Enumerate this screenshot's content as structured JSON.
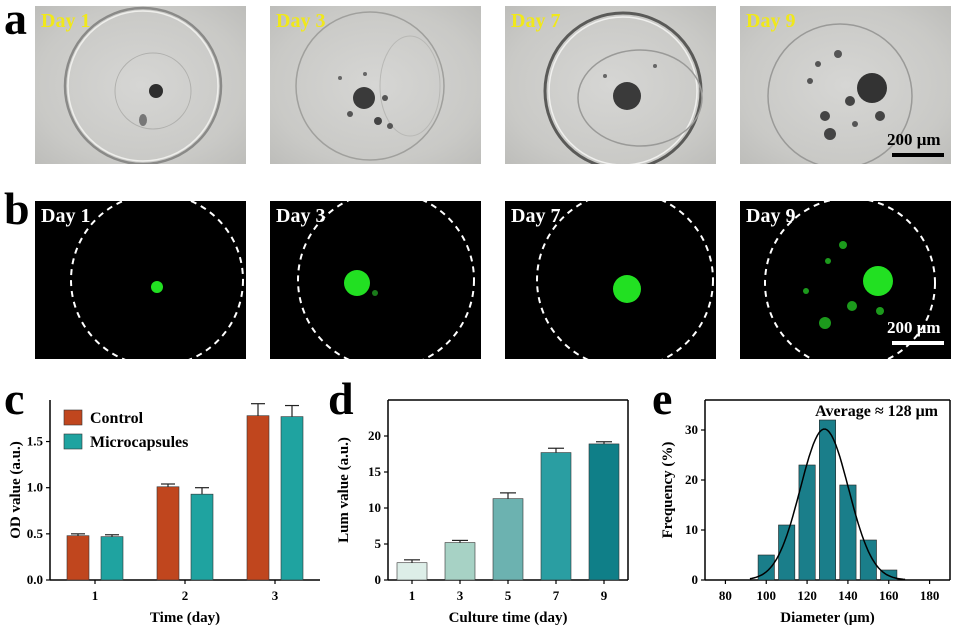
{
  "panels": {
    "a": "a",
    "b": "b",
    "c": "c",
    "d": "d",
    "e": "e"
  },
  "micrographs": {
    "days": [
      "Day 1",
      "Day 3",
      "Day 7",
      "Day 9"
    ],
    "scale_bar_label": "200 μm",
    "colors": {
      "bright_label": "#f0e81a",
      "fluor_label": "#ffffff",
      "fluor_cells": "#22e022"
    }
  },
  "chart_data": [
    {
      "type": "bar",
      "panel": "c",
      "categories": [
        "1",
        "2",
        "3"
      ],
      "series": [
        {
          "name": "Control",
          "values": [
            0.48,
            1.01,
            1.78
          ],
          "errors": [
            0.02,
            0.03,
            0.13
          ],
          "color": "#c0461e"
        },
        {
          "name": "Microcapsules",
          "values": [
            0.47,
            0.93,
            1.77
          ],
          "errors": [
            0.02,
            0.07,
            0.12
          ],
          "color": "#1fa3a0"
        }
      ],
      "xlabel": "Time (day)",
      "ylabel": "OD value (a.u.)",
      "ylim": [
        0,
        1.95
      ],
      "yticks": [
        "0.0",
        "0.5",
        "1.0",
        "1.5"
      ],
      "legend": "top-left"
    },
    {
      "type": "bar",
      "panel": "d",
      "categories": [
        "1",
        "3",
        "5",
        "7",
        "9"
      ],
      "values": [
        2.4,
        5.2,
        11.3,
        17.7,
        18.9
      ],
      "errors": [
        0.4,
        0.3,
        0.8,
        0.6,
        0.3
      ],
      "colors": [
        "#ddeee8",
        "#a7d2c5",
        "#6cb2b0",
        "#2a9ea2",
        "#0f7f88"
      ],
      "xlabel": "Culture time (day)",
      "ylabel": "Lum value (a.u.)",
      "ylim": [
        0,
        25
      ],
      "yticks": [
        "0",
        "5",
        "10",
        "15",
        "20"
      ]
    },
    {
      "type": "bar",
      "panel": "e",
      "x": [
        100,
        110,
        120,
        130,
        140,
        150,
        160
      ],
      "values": [
        5,
        11,
        23,
        32,
        19,
        8,
        2
      ],
      "color": "#1a7e8a",
      "fit": "gaussian",
      "fit_params": {
        "amplitude": 30.2,
        "mean": 128.5,
        "sigma": 11.8
      },
      "annotation": "Average ≈ 128 μm",
      "xlabel": "Diameter (μm)",
      "ylabel": "Frequency (%)",
      "xlim": [
        70,
        190
      ],
      "ylim": [
        0,
        36
      ],
      "xticks": [
        "80",
        "100",
        "120",
        "140",
        "160",
        "180"
      ],
      "yticks": [
        "0",
        "10",
        "20",
        "30"
      ]
    }
  ]
}
